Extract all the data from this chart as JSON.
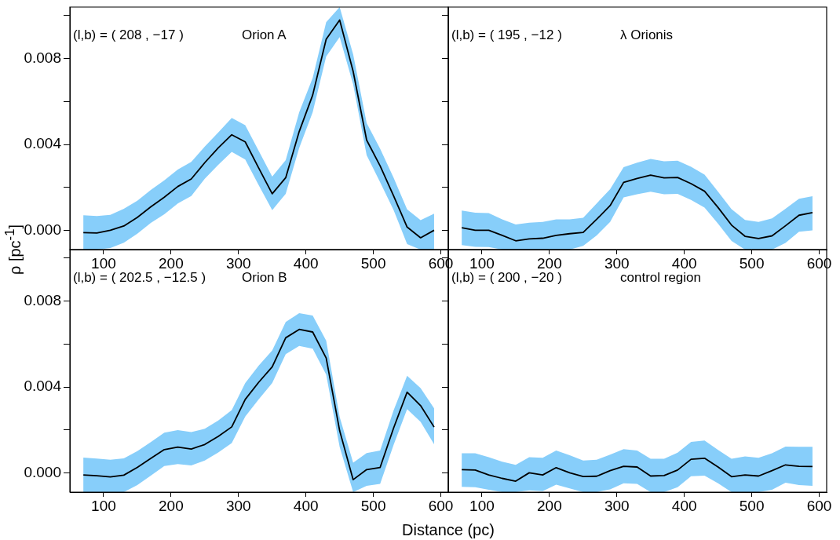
{
  "chart_data": [
    {
      "type": "line",
      "annotations": [
        "(l,b) = ( 208 , −17 )",
        "Orion A"
      ],
      "ylabel": "ρ [pc$^{-1}$]",
      "x": [
        70,
        90,
        110,
        130,
        150,
        170,
        190,
        210,
        230,
        250,
        270,
        290,
        310,
        330,
        350,
        370,
        390,
        410,
        430,
        450,
        470,
        490,
        510,
        530,
        550,
        570,
        590
      ],
      "xlim": [
        50,
        611
      ],
      "xticks": [
        100,
        200,
        300,
        400,
        500,
        600
      ],
      "ylim": [
        -0.0009,
        0.0104
      ],
      "yticks": [
        {
          "value": 0,
          "label": "0.000"
        },
        {
          "value": 0.002,
          "label": null
        },
        0.004,
        {
          "value": 0.006,
          "label": null
        },
        0.008,
        {
          "value": 0.01,
          "label": null
        }
      ],
      "legend": false,
      "marker": "none",
      "line_style": "solid",
      "series": [
        {
          "color": "#000000",
          "values": [
            -0.00011,
            -0.00013,
            0,
            0.0002,
            0.0006,
            0.00109,
            0.00154,
            0.00204,
            0.00239,
            0.00315,
            0.00384,
            0.00445,
            0.00412,
            0.0029,
            0.0017,
            0.00245,
            0.0046,
            0.0063,
            0.0089,
            0.0098,
            0.0074,
            0.0042,
            0.003,
            0.0016,
            0.00015,
            -0.00035,
            0
          ],
          "upper": [
            0.0007,
            0.00066,
            0.00072,
            0.001,
            0.00138,
            0.00188,
            0.00233,
            0.00283,
            0.00319,
            0.0039,
            0.00456,
            0.00523,
            0.0049,
            0.0037,
            0.0025,
            0.00327,
            0.0055,
            0.0071,
            0.0097,
            0.0104,
            0.0082,
            0.005,
            0.0038,
            0.00245,
            0.00097,
            0.00047,
            0.00077
          ],
          "lower": [
            -0.0009,
            -0.0009,
            -0.00083,
            -0.00058,
            -0.00016,
            0.00034,
            0.00075,
            0.00125,
            0.0016,
            0.0024,
            0.00305,
            0.00365,
            0.0033,
            0.0021,
            0.00094,
            0.0017,
            0.00384,
            0.0055,
            0.0081,
            0.009,
            0.0068,
            0.0035,
            0.00224,
            0.00094,
            -0.00064,
            -0.0009,
            -0.0009
          ]
        }
      ]
    },
    {
      "type": "line",
      "annotations": [
        "(l,b) = ( 195 , −12 )",
        "λ Orionis"
      ],
      "x": [
        70,
        90,
        110,
        130,
        150,
        170,
        190,
        210,
        230,
        250,
        270,
        290,
        310,
        330,
        350,
        370,
        390,
        410,
        430,
        450,
        470,
        490,
        510,
        530,
        550,
        570,
        590
      ],
      "xlim": [
        50,
        611
      ],
      "xticks": [
        100,
        200,
        300,
        400,
        500,
        600
      ],
      "ylim": [
        -0.0009,
        0.0104
      ],
      "yticks": [
        0,
        0.002,
        0.004,
        0.006,
        0.008,
        0.01
      ],
      "tick_labels": "x",
      "legend": false,
      "marker": "none",
      "line_style": "solid",
      "series": [
        {
          "color": "#000000",
          "values": [
            0.00012,
            0,
            0,
            -0.00024,
            -0.00049,
            -0.0004,
            -0.00037,
            -0.00024,
            -0.00016,
            -0.0001,
            0.00051,
            0.00115,
            0.00223,
            0.00241,
            0.00257,
            0.00244,
            0.00246,
            0.00217,
            0.00182,
            0.00106,
            0.00024,
            -0.00028,
            -0.00038,
            -0.00026,
            0.00021,
            0.0007,
            0.00082
          ],
          "upper": [
            0.00092,
            0.00082,
            0.0008,
            0.00051,
            0.00027,
            0.00035,
            0.00039,
            0.00051,
            0.00051,
            0.00058,
            0.00125,
            0.00192,
            0.00294,
            0.00315,
            0.00332,
            0.00321,
            0.00324,
            0.00296,
            0.00259,
            0.0018,
            0.00098,
            0.00048,
            0.00039,
            0.00055,
            0.001,
            0.00147,
            0.00159
          ],
          "lower": [
            -0.00069,
            -0.00077,
            -0.00078,
            -0.0009,
            -0.0009,
            -0.0009,
            -0.0009,
            -0.0009,
            -0.0009,
            -0.00073,
            -0.00024,
            0.00039,
            0.00153,
            0.00168,
            0.0018,
            0.00168,
            0.0017,
            0.00141,
            0.00106,
            0.00031,
            -0.0005,
            -0.0009,
            -0.0009,
            -0.0009,
            -0.00059,
            -7e-05,
            0
          ]
        }
      ]
    },
    {
      "type": "line",
      "annotations": [
        "(l,b) = ( 202.5 , −12.5 )",
        "Orion B"
      ],
      "xlabel": "Distance (pc)",
      "x": [
        70,
        90,
        110,
        130,
        150,
        170,
        190,
        210,
        230,
        250,
        270,
        290,
        310,
        330,
        350,
        370,
        390,
        410,
        430,
        450,
        470,
        490,
        510,
        530,
        550,
        570,
        590
      ],
      "xlim": [
        50,
        611
      ],
      "xticks": [
        100,
        200,
        300,
        400,
        500,
        600
      ],
      "ylim": [
        -0.0009,
        0.0104
      ],
      "yticks": [
        {
          "value": 0,
          "label": "0.000"
        },
        {
          "value": 0.002,
          "label": null
        },
        0.004,
        {
          "value": 0.006,
          "label": null
        },
        0.008,
        {
          "value": 0.01,
          "label": null
        }
      ],
      "legend": false,
      "marker": "none",
      "line_style": "solid",
      "series": [
        {
          "color": "#000000",
          "values": [
            -0.0001,
            -0.00014,
            -0.00019,
            -0.00011,
            0.00025,
            0.00067,
            0.00108,
            0.0012,
            0.00111,
            0.00132,
            0.0017,
            0.00214,
            0.00342,
            0.00422,
            0.00494,
            0.00629,
            0.00668,
            0.00656,
            0.00535,
            0.00196,
            -0.00032,
            0.00015,
            0.00025,
            0.00209,
            0.00376,
            0.00313,
            0.00213
          ],
          "upper": [
            0.00071,
            0.00066,
            0.00061,
            0.00067,
            0.00101,
            0.00143,
            0.00187,
            0.00199,
            0.0019,
            0.00205,
            0.00244,
            0.00292,
            0.00418,
            0.005,
            0.0057,
            0.00703,
            0.00744,
            0.00733,
            0.00616,
            0.0026,
            0.00047,
            0.00092,
            0.00104,
            0.00291,
            0.00452,
            0.00395,
            0.003
          ],
          "lower": [
            -0.0009,
            -0.0009,
            -0.0009,
            -0.0009,
            -0.00057,
            -0.00013,
            0.00032,
            0.00041,
            0.00034,
            0.00057,
            0.00095,
            0.00139,
            0.00262,
            0.00342,
            0.00418,
            0.00553,
            0.00591,
            0.00578,
            0.00458,
            0.0012,
            -0.0009,
            -0.00061,
            -0.00052,
            0.0013,
            0.00297,
            0.00237,
            0.00133
          ]
        }
      ]
    },
    {
      "type": "line",
      "annotations": [
        "(l,b) = ( 200 , −20 )",
        "control region"
      ],
      "x": [
        70,
        90,
        110,
        130,
        150,
        170,
        190,
        210,
        230,
        250,
        270,
        290,
        310,
        330,
        350,
        370,
        390,
        410,
        430,
        450,
        470,
        490,
        510,
        530,
        550,
        570,
        590
      ],
      "xlim": [
        50,
        611
      ],
      "xticks": [
        100,
        200,
        300,
        400,
        500,
        600
      ],
      "ylim": [
        -0.0009,
        0.0104
      ],
      "yticks": [
        0,
        0.002,
        0.004,
        0.006,
        0.008,
        0.01
      ],
      "tick_labels": "x",
      "legend": false,
      "marker": "none",
      "line_style": "solid",
      "series": [
        {
          "color": "#000000",
          "values": [
            0.00015,
            0.00013,
            -0.0001,
            -0.00026,
            -0.00039,
            0,
            -0.0001,
            0.00024,
            0,
            -0.00017,
            -0.00016,
            0.0001,
            0.0003,
            0.00027,
            -0.00015,
            -0.00013,
            0.00013,
            0.00063,
            0.00068,
            0.00027,
            -0.00018,
            -0.0001,
            -0.00015,
            0.0001,
            0.00037,
            0.0003,
            0.00029
          ],
          "upper": [
            0.00091,
            0.00091,
            0.00073,
            0.00052,
            0.00037,
            0.00073,
            0.0007,
            0.00104,
            0.00082,
            0.00057,
            0.00061,
            0.00085,
            0.0011,
            0.00104,
            0.00065,
            0.00065,
            0.00094,
            0.00144,
            0.0015,
            0.00107,
            0.00065,
            0.00076,
            0.0007,
            0.00091,
            0.00122,
            0.00121,
            0.00121
          ],
          "lower": [
            -0.00065,
            -0.00067,
            -0.00079,
            -0.0009,
            -0.0009,
            -0.00082,
            -0.00085,
            -0.00055,
            -0.00073,
            -0.0009,
            -0.0009,
            -0.00077,
            -0.00049,
            -0.00052,
            -0.0009,
            -0.0009,
            -0.00067,
            -0.00016,
            -0.00013,
            -0.00049,
            -0.0009,
            -0.0009,
            -0.0009,
            -0.00079,
            -0.00046,
            -0.00057,
            -0.00061
          ]
        }
      ]
    }
  ]
}
